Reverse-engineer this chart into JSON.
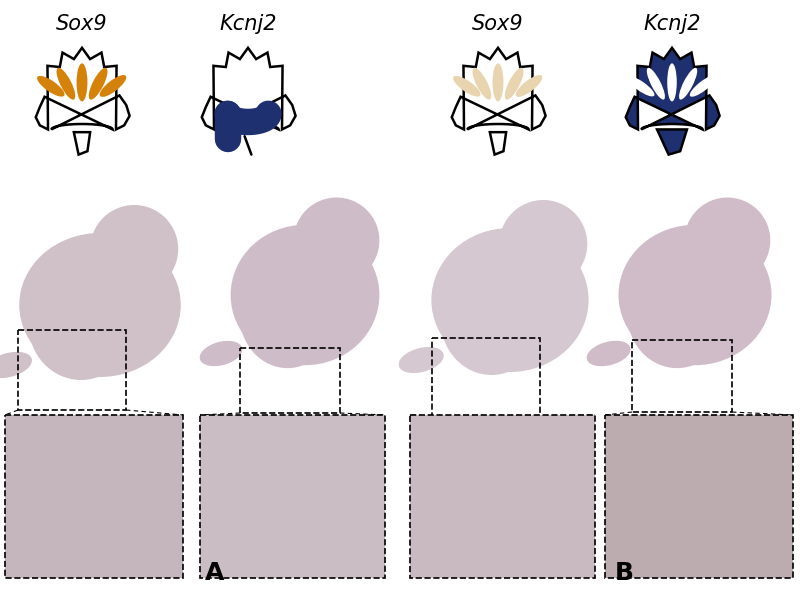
{
  "background_color": "#ffffff",
  "sox9_color_A": "#D4820A",
  "kcnj2_color_A": "#1e3070",
  "sox9_color_B": "#e8d5b0",
  "kcnj2_color_B": "#1e3070",
  "label_A": "A",
  "label_B": "B",
  "sox9_label": "Sox9",
  "kcnj2_label": "Kcnj2",
  "fig_width": 8.0,
  "fig_height": 5.93
}
